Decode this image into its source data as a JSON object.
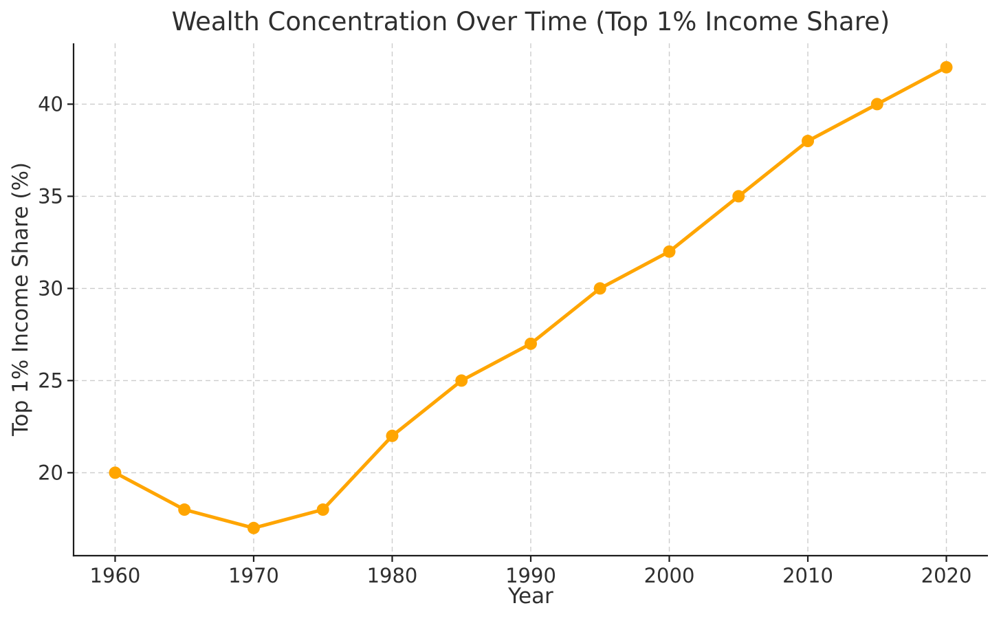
{
  "figure": {
    "background": "#ffffff"
  },
  "chart_data": {
    "type": "line",
    "title": "Wealth Concentration Over Time (Top 1% Income Share)",
    "xlabel": "Year",
    "ylabel": "Top 1% Income Share (%)",
    "series": [
      {
        "name": "Top 1% Income Share",
        "x": [
          1960,
          1965,
          1970,
          1975,
          1980,
          1985,
          1990,
          1995,
          2000,
          2005,
          2010,
          2015,
          2020
        ],
        "values": [
          20,
          18,
          17,
          18,
          22,
          25,
          27,
          30,
          32,
          35,
          38,
          40,
          42
        ],
        "color": "#FFA500",
        "marker": "circle",
        "line_width": 5,
        "marker_radius": 9
      }
    ],
    "x_ticks": [
      1960,
      1970,
      1980,
      1990,
      2000,
      2010,
      2020
    ],
    "y_ticks": [
      20,
      25,
      30,
      35,
      40
    ],
    "xlim": [
      1957,
      2023
    ],
    "ylim": [
      15.5,
      43.3
    ],
    "grid": true,
    "grid_style": "dashed",
    "legend": false,
    "legend_position": "none",
    "spines": [
      "left",
      "bottom"
    ],
    "colors": {
      "line": "#FFA500",
      "grid": "#cccccc",
      "axis": "#1c1c1c",
      "text": "#2f2f2f"
    }
  }
}
